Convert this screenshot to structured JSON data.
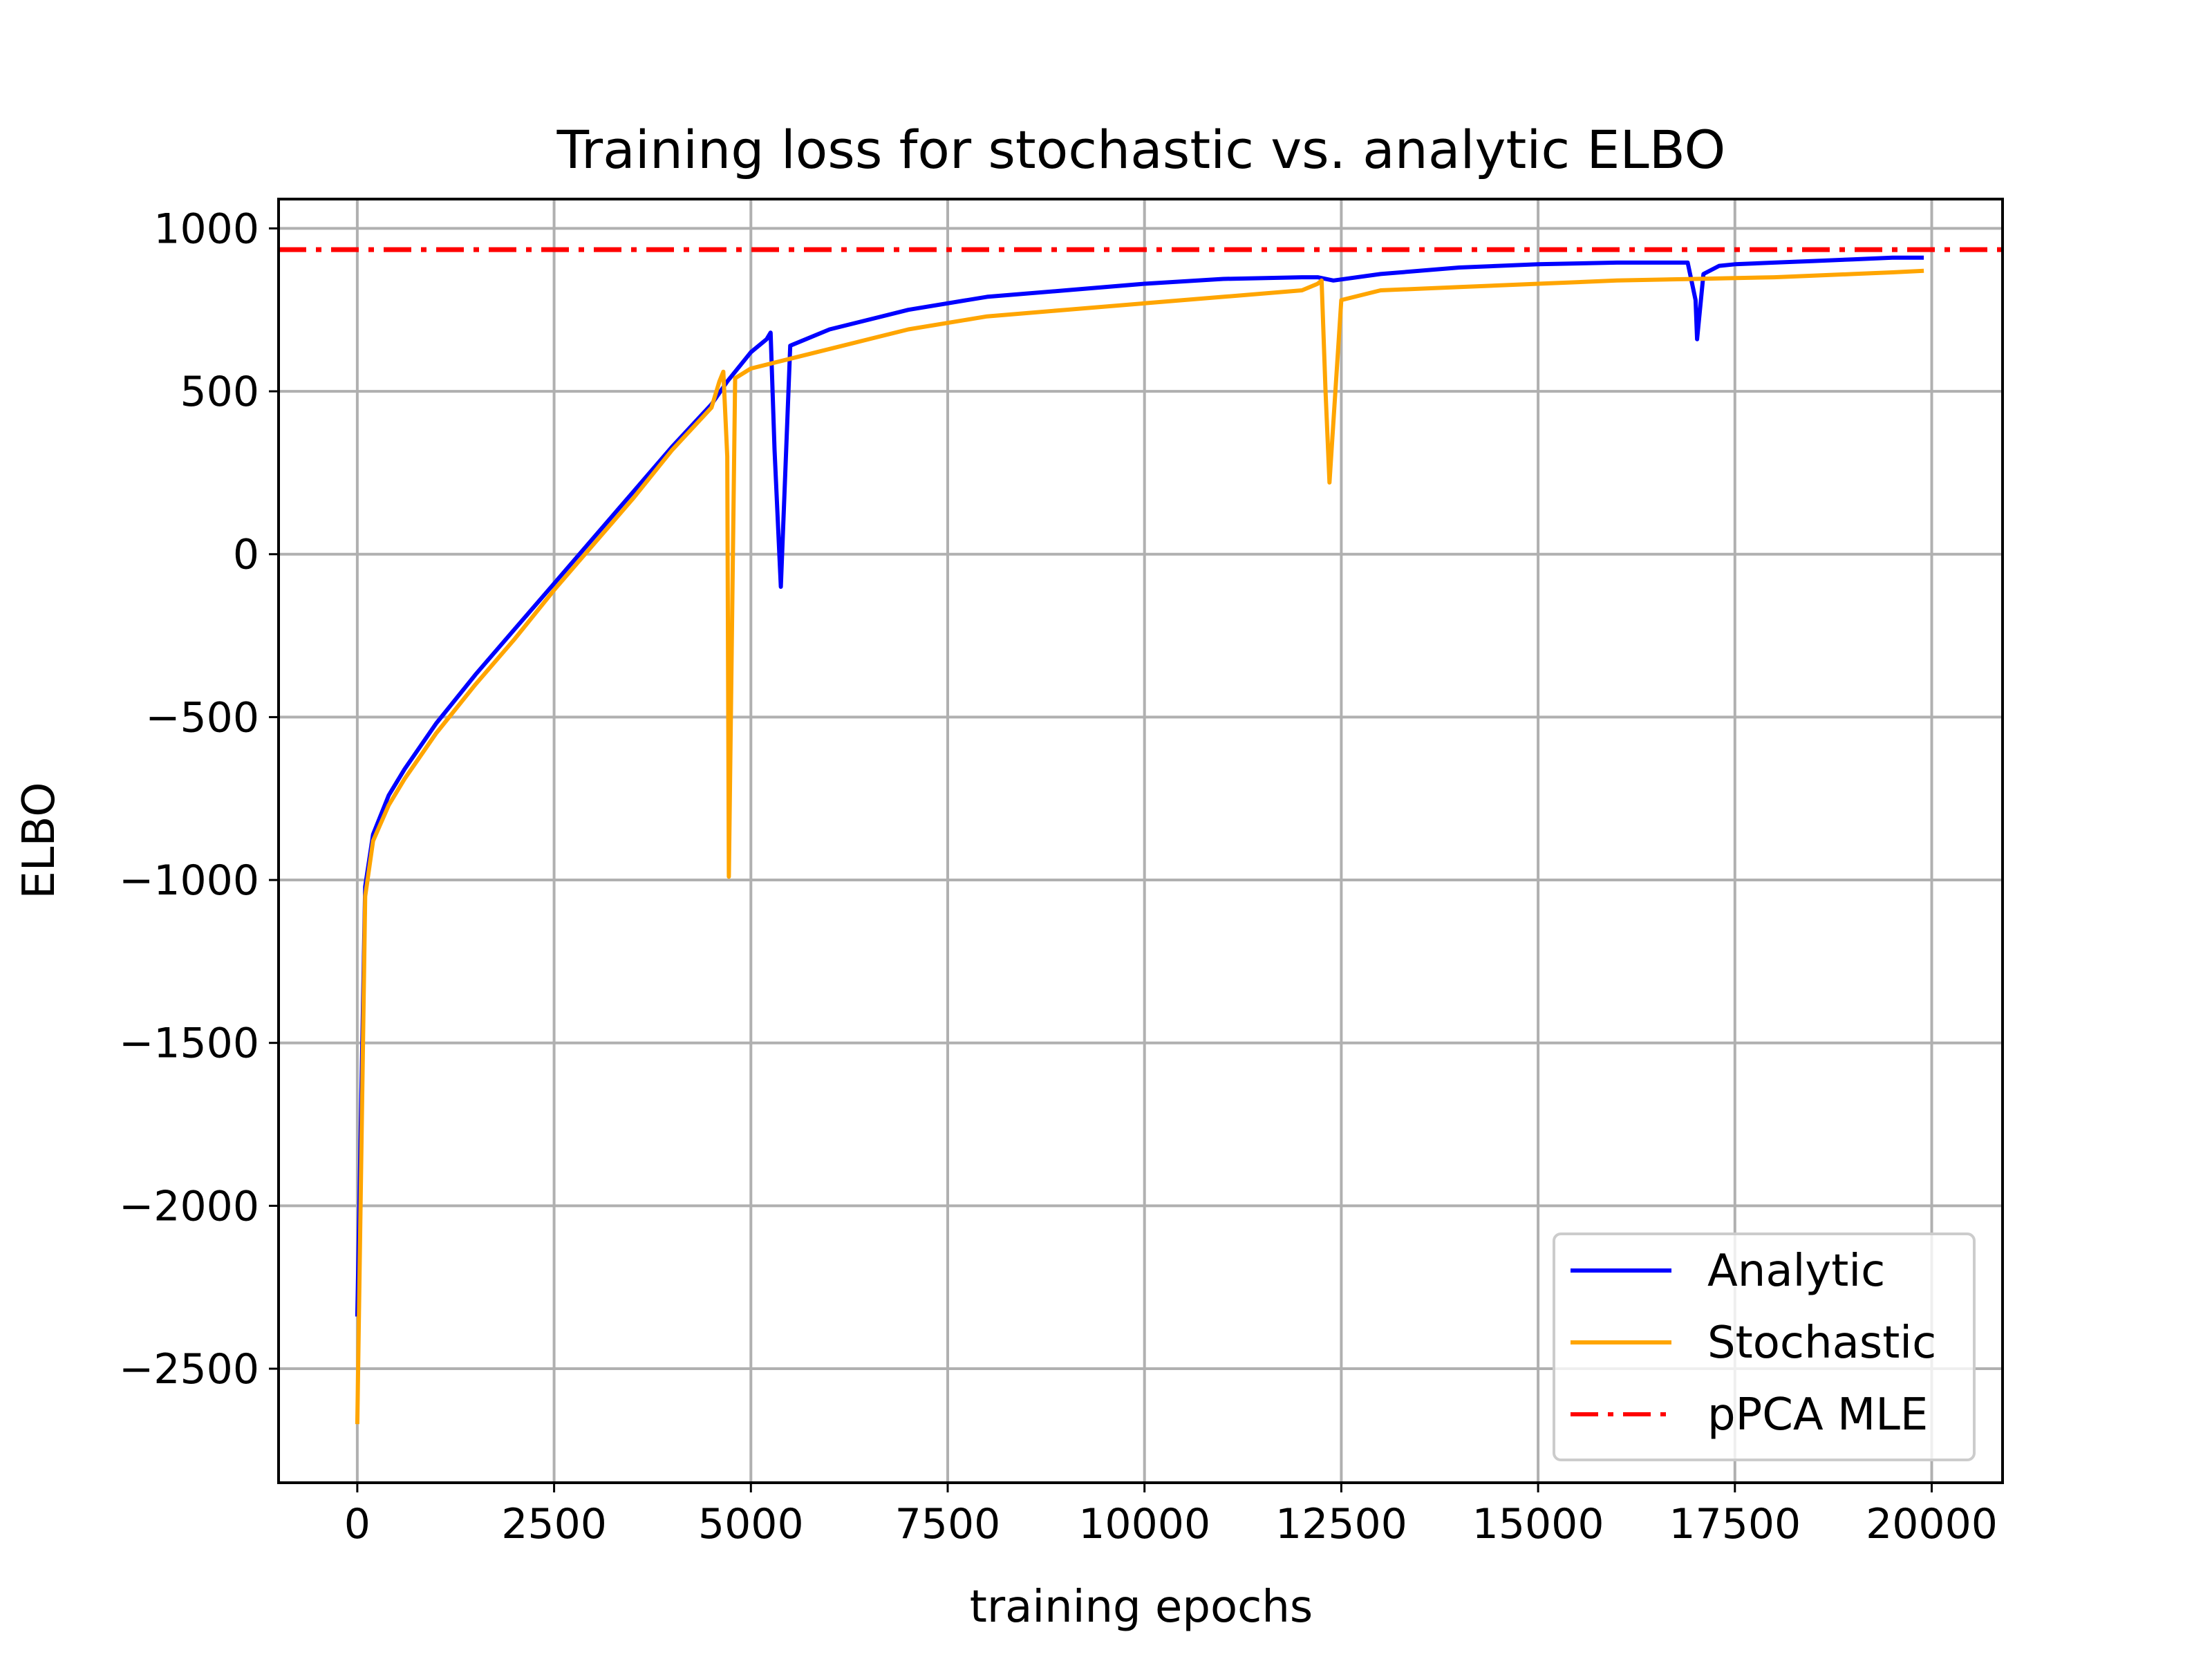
{
  "chart_data": {
    "type": "line",
    "title": "Training loss for stochastic vs. analytic ELBO",
    "xlabel": "training epochs",
    "ylabel": "ELBO",
    "xlim": [
      -1000,
      20900
    ],
    "ylim": [
      -2850,
      1090
    ],
    "xticks": [
      0,
      2500,
      5000,
      7500,
      10000,
      12500,
      15000,
      17500,
      20000
    ],
    "xtick_labels": [
      "0",
      "2500",
      "5000",
      "7500",
      "10000",
      "12500",
      "15000",
      "17500",
      "20000"
    ],
    "yticks": [
      1000,
      500,
      0,
      -500,
      -1000,
      -1500,
      -2000,
      -2500
    ],
    "ytick_labels": [
      "1000",
      "500",
      "0",
      "−500",
      "−1000",
      "−1500",
      "−2000",
      "−2500"
    ],
    "grid": true,
    "legend_position": "lower-right",
    "series": [
      {
        "name": "Analytic",
        "color": "#0000ff",
        "style": "solid",
        "x": [
          0,
          100,
          200,
          400,
          600,
          800,
          1000,
          1500,
          2000,
          2500,
          3000,
          3500,
          4000,
          4500,
          4700,
          5000,
          5200,
          5250,
          5300,
          5380,
          5500,
          6000,
          7000,
          8000,
          9000,
          10000,
          11000,
          12000,
          12200,
          12400,
          13000,
          14000,
          15000,
          16000,
          16900,
          17000,
          17020,
          17100,
          17300,
          17500,
          18000,
          18500,
          19000,
          19500,
          19900
        ],
        "y": [
          -2340,
          -1020,
          -860,
          -740,
          -660,
          -590,
          -520,
          -370,
          -230,
          -90,
          50,
          190,
          330,
          460,
          530,
          620,
          660,
          680,
          320,
          -100,
          640,
          690,
          750,
          790,
          810,
          830,
          845,
          850,
          850,
          840,
          860,
          880,
          890,
          895,
          895,
          780,
          660,
          860,
          885,
          890,
          895,
          900,
          905,
          910,
          910
        ]
      },
      {
        "name": "Stochastic",
        "color": "#ffa500",
        "style": "solid",
        "x": [
          0,
          100,
          200,
          400,
          600,
          800,
          1000,
          1500,
          2000,
          2500,
          3000,
          3500,
          4000,
          4500,
          4600,
          4650,
          4700,
          4720,
          4800,
          5000,
          6000,
          7000,
          8000,
          9000,
          10000,
          11000,
          12000,
          12200,
          12250,
          12300,
          12350,
          12500,
          13000,
          14000,
          15000,
          16000,
          17000,
          18000,
          18500,
          19000,
          19500,
          19900
        ],
        "y": [
          -2670,
          -1050,
          -880,
          -770,
          -690,
          -620,
          -550,
          -400,
          -260,
          -110,
          30,
          170,
          320,
          450,
          530,
          560,
          300,
          -990,
          540,
          570,
          630,
          690,
          730,
          750,
          770,
          790,
          810,
          830,
          840,
          500,
          220,
          780,
          810,
          820,
          830,
          840,
          845,
          850,
          855,
          860,
          865,
          870
        ]
      },
      {
        "name": "pPCA MLE",
        "color": "#ff0000",
        "style": "dashdot",
        "x": [
          -1000,
          20900
        ],
        "y": [
          935,
          935
        ]
      }
    ]
  }
}
